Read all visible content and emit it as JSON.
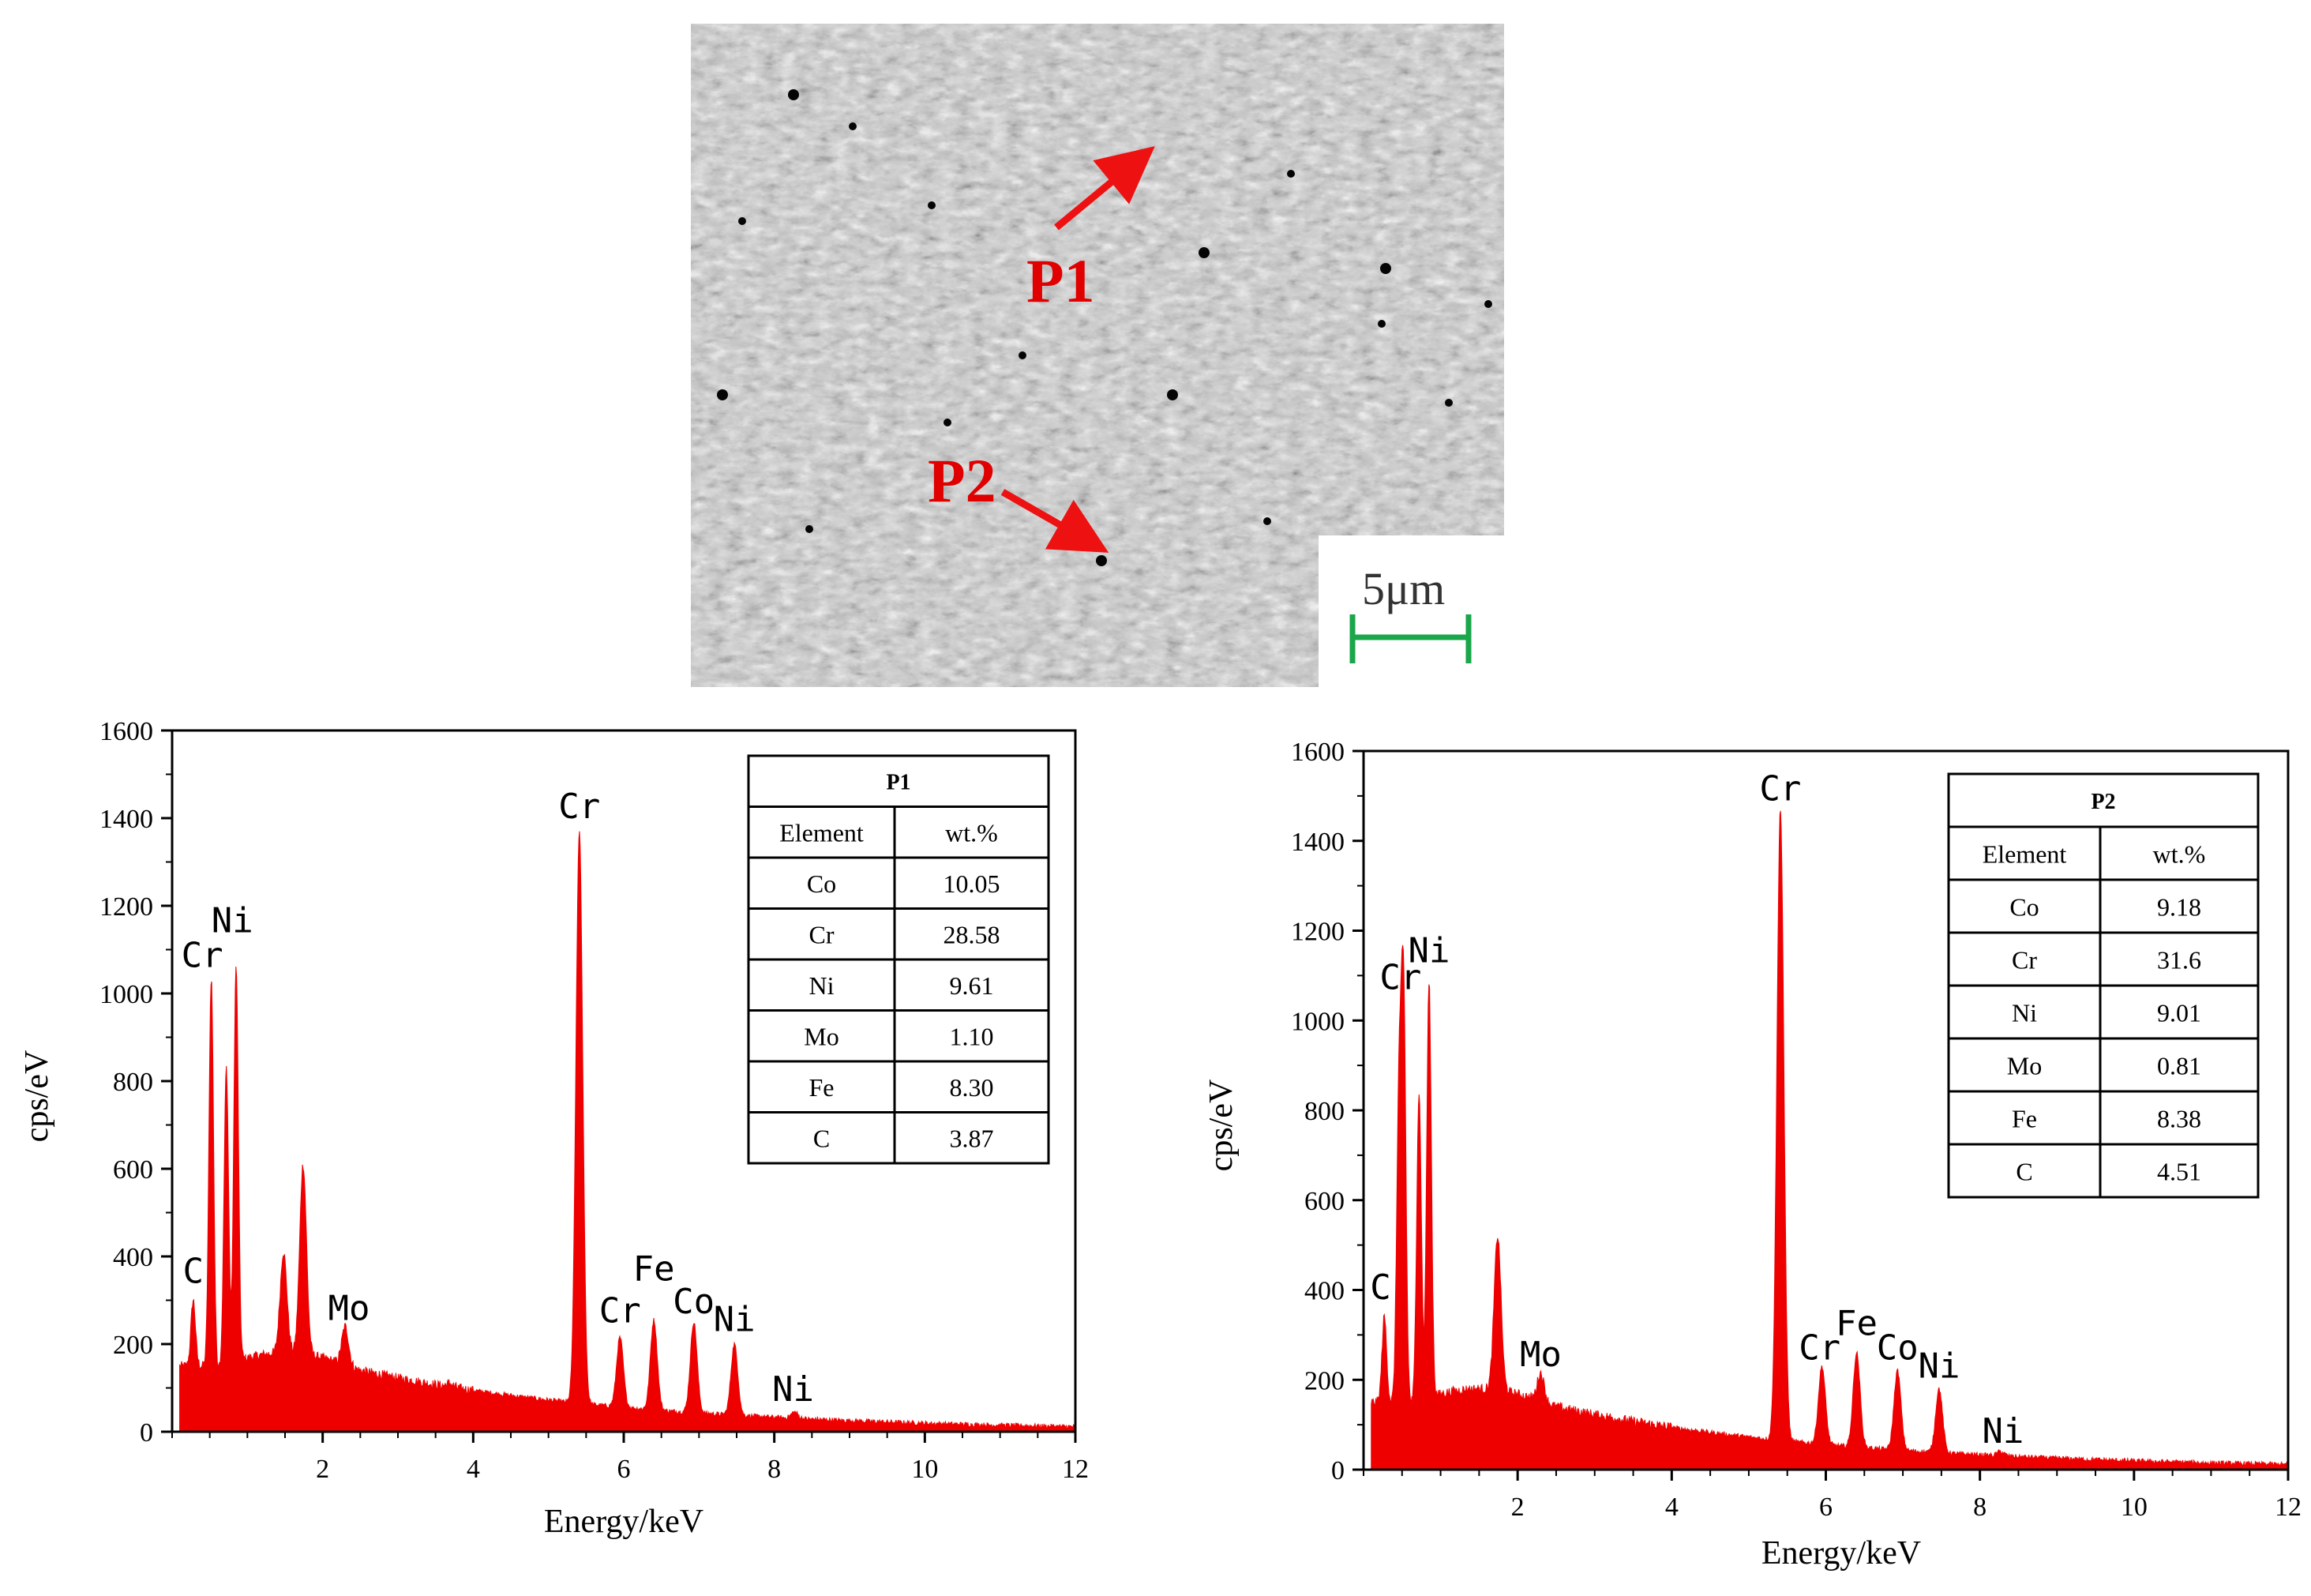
{
  "sem_image": {
    "markers": [
      {
        "label": "P1"
      },
      {
        "label": "P2"
      }
    ],
    "scale_bar": {
      "label": "5μm",
      "color": "#1aa64a"
    },
    "arrow_color": "#ee1111"
  },
  "chart_data": [
    {
      "type": "area",
      "xlabel": "Energy/keV",
      "ylabel": "cps/eV",
      "xlim": [
        0,
        12
      ],
      "ylim": [
        0,
        1600
      ],
      "xticks": [
        2,
        4,
        6,
        8,
        10,
        12
      ],
      "yticks": [
        0,
        200,
        400,
        600,
        800,
        1000,
        1200,
        1400,
        1600
      ],
      "color": "#ee0000",
      "peaks": [
        {
          "x": 0.28,
          "y": 300
        },
        {
          "x": 0.52,
          "y": 1035
        },
        {
          "x": 0.72,
          "y": 830
        },
        {
          "x": 0.85,
          "y": 1060
        },
        {
          "x": 1.48,
          "y": 410
        },
        {
          "x": 1.74,
          "y": 610
        },
        {
          "x": 2.3,
          "y": 240
        },
        {
          "x": 3.69,
          "y": 110
        },
        {
          "x": 5.41,
          "y": 1370
        },
        {
          "x": 5.95,
          "y": 215
        },
        {
          "x": 6.4,
          "y": 255
        },
        {
          "x": 6.93,
          "y": 250
        },
        {
          "x": 7.47,
          "y": 200
        },
        {
          "x": 8.27,
          "y": 45
        }
      ],
      "peak_labels": [
        {
          "text": "C",
          "x": 0.28,
          "y": 340
        },
        {
          "text": "Cr",
          "x": 0.4,
          "y": 1060
        },
        {
          "text": "Ni",
          "x": 0.8,
          "y": 1140
        },
        {
          "text": "Mo",
          "x": 2.35,
          "y": 255
        },
        {
          "text": "Cr",
          "x": 5.41,
          "y": 1400
        },
        {
          "text": "Cr",
          "x": 5.95,
          "y": 250
        },
        {
          "text": "Fe",
          "x": 6.4,
          "y": 345
        },
        {
          "text": "Co",
          "x": 6.93,
          "y": 270
        },
        {
          "text": "Ni",
          "x": 7.47,
          "y": 230
        },
        {
          "text": "Ni",
          "x": 8.25,
          "y": 70
        }
      ],
      "table": {
        "title": "P1",
        "headers": [
          "Element",
          "wt.%"
        ],
        "rows": [
          [
            "Co",
            "10.05"
          ],
          [
            "Cr",
            "28.58"
          ],
          [
            "Ni",
            "9.61"
          ],
          [
            "Mo",
            "1.10"
          ],
          [
            "Fe",
            "8.30"
          ],
          [
            "C",
            "3.87"
          ]
        ]
      }
    },
    {
      "type": "area",
      "xlabel": "Energy/keV",
      "ylabel": "cps/eV",
      "xlim": [
        0,
        12
      ],
      "ylim": [
        0,
        1600
      ],
      "xticks": [
        2,
        4,
        6,
        8,
        10,
        12
      ],
      "yticks": [
        0,
        200,
        400,
        600,
        800,
        1000,
        1200,
        1400,
        1600
      ],
      "color": "#ee0000",
      "peaks": [
        {
          "x": 0.27,
          "y": 340
        },
        {
          "x": 0.46,
          "y": 820
        },
        {
          "x": 0.52,
          "y": 1045
        },
        {
          "x": 0.72,
          "y": 840
        },
        {
          "x": 0.85,
          "y": 1085
        },
        {
          "x": 1.74,
          "y": 520
        },
        {
          "x": 2.3,
          "y": 215
        },
        {
          "x": 5.41,
          "y": 1470
        },
        {
          "x": 5.95,
          "y": 230
        },
        {
          "x": 6.4,
          "y": 260
        },
        {
          "x": 6.93,
          "y": 220
        },
        {
          "x": 7.47,
          "y": 180
        },
        {
          "x": 8.27,
          "y": 40
        }
      ],
      "peak_labels": [
        {
          "text": "C",
          "x": 0.22,
          "y": 380
        },
        {
          "text": "Cr",
          "x": 0.48,
          "y": 1070
        },
        {
          "text": "Ni",
          "x": 0.85,
          "y": 1130
        },
        {
          "text": "Mo",
          "x": 2.3,
          "y": 230
        },
        {
          "text": "Cr",
          "x": 5.41,
          "y": 1490
        },
        {
          "text": "Cr",
          "x": 5.92,
          "y": 245
        },
        {
          "text": "Fe",
          "x": 6.4,
          "y": 300
        },
        {
          "text": "Co",
          "x": 6.93,
          "y": 245
        },
        {
          "text": "Ni",
          "x": 7.47,
          "y": 205
        },
        {
          "text": "Ni",
          "x": 8.3,
          "y": 60
        }
      ],
      "table": {
        "title": "P2",
        "headers": [
          "Element",
          "wt.%"
        ],
        "rows": [
          [
            "Co",
            "9.18"
          ],
          [
            "Cr",
            "31.6"
          ],
          [
            "Ni",
            "9.01"
          ],
          [
            "Mo",
            "0.81"
          ],
          [
            "Fe",
            "8.38"
          ],
          [
            "C",
            "4.51"
          ]
        ]
      }
    }
  ]
}
